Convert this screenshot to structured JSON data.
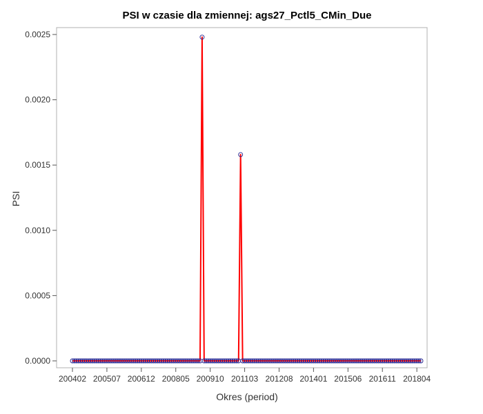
{
  "chart_data": {
    "type": "line",
    "title": "PSI w czasie dla zmiennej: ags27_Pctl5_CMin_Due",
    "xlabel": "Okres (period)",
    "ylabel": "PSI",
    "x_tick_labels": [
      "200402",
      "200507",
      "200612",
      "200805",
      "200910",
      "201103",
      "201208",
      "201401",
      "201506",
      "201611",
      "201804"
    ],
    "y_tick_labels": [
      "0.0000",
      "0.0005",
      "0.0010",
      "0.0015",
      "0.0020",
      "0.0025"
    ],
    "y_ticks": [
      0,
      0.0005,
      0.001,
      0.0015,
      0.002,
      0.0025
    ],
    "ylim": [
      0,
      0.00259
    ],
    "x_start": "200402",
    "x_end": "201806",
    "grid": false,
    "series": [
      {
        "color": "#ff0000",
        "marker_color": "#1f1f8f",
        "nonzero_points": [
          {
            "period": "200906",
            "value": 0.00248
          },
          {
            "period": "201101",
            "value": 0.00158
          }
        ],
        "default_value": 0
      }
    ]
  }
}
